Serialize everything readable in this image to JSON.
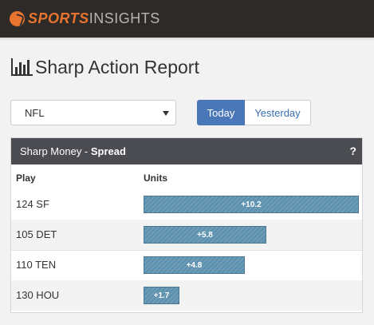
{
  "brand": {
    "sports": "SPORTS",
    "insights": "INSIGHTS"
  },
  "page": {
    "title": "Sharp Action Report"
  },
  "league_select": {
    "value": "NFL"
  },
  "day_toggle": {
    "today": "Today",
    "yesterday": "Yesterday",
    "selected": "Today"
  },
  "panel": {
    "title_prefix": "Sharp Money - ",
    "title_market": "Spread",
    "help": "?",
    "columns": {
      "play": "Play",
      "units": "Units"
    },
    "rows": [
      {
        "play": "124 SF",
        "units_label": "+10.2",
        "units": 10.2
      },
      {
        "play": "105 DET",
        "units_label": "+5.8",
        "units": 5.8
      },
      {
        "play": "110 TEN",
        "units_label": "+4.8",
        "units": 4.8
      },
      {
        "play": "130 HOU",
        "units_label": "+1.7",
        "units": 1.7
      }
    ]
  },
  "colors": {
    "brand_orange": "#e8742f",
    "accent_blue": "#4a77b8",
    "bar": "#5a8fae",
    "panel_header": "#4a4c52"
  }
}
